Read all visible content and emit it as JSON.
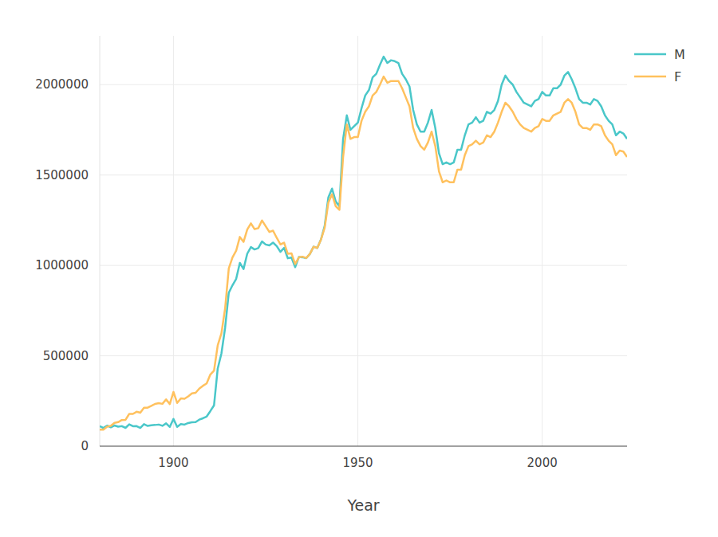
{
  "chart_data": {
    "type": "line",
    "x_label": "Year",
    "x": [
      1880,
      1881,
      1882,
      1883,
      1884,
      1885,
      1886,
      1887,
      1888,
      1889,
      1890,
      1891,
      1892,
      1893,
      1894,
      1895,
      1896,
      1897,
      1898,
      1899,
      1900,
      1901,
      1902,
      1903,
      1904,
      1905,
      1906,
      1907,
      1908,
      1909,
      1910,
      1911,
      1912,
      1913,
      1914,
      1915,
      1916,
      1917,
      1918,
      1919,
      1920,
      1921,
      1922,
      1923,
      1924,
      1925,
      1926,
      1927,
      1928,
      1929,
      1930,
      1931,
      1932,
      1933,
      1934,
      1935,
      1936,
      1937,
      1938,
      1939,
      1940,
      1941,
      1942,
      1943,
      1944,
      1945,
      1946,
      1947,
      1948,
      1949,
      1950,
      1951,
      1952,
      1953,
      1954,
      1955,
      1956,
      1957,
      1958,
      1959,
      1960,
      1961,
      1962,
      1963,
      1964,
      1965,
      1966,
      1967,
      1968,
      1969,
      1970,
      1971,
      1972,
      1973,
      1974,
      1975,
      1976,
      1977,
      1978,
      1979,
      1980,
      1981,
      1982,
      1983,
      1984,
      1985,
      1986,
      1987,
      1988,
      1989,
      1990,
      1991,
      1992,
      1993,
      1994,
      1995,
      1996,
      1997,
      1998,
      1999,
      2000,
      2001,
      2002,
      2003,
      2004,
      2005,
      2006,
      2007,
      2008,
      2009,
      2010,
      2011,
      2012,
      2013,
      2014,
      2015,
      2016,
      2017,
      2018,
      2019,
      2020,
      2021,
      2022,
      2023
    ],
    "series": [
      {
        "name": "M",
        "color": "#4ac7c9",
        "values": [
          110490,
          100738,
          113686,
          104625,
          114442,
          107799,
          110784,
          101412,
          120851,
          110580,
          111025,
          101193,
          122036,
          112317,
          115772,
          117396,
          119570,
          112758,
          126154,
          106471,
          150483,
          106469,
          122660,
          119233,
          128125,
          132319,
          133159,
          146838,
          154339,
          163983,
          194198,
          225964,
          429977,
          512482,
          654746,
          848647,
          890142,
          925512,
          1013720,
          980215,
          1064468,
          1101374,
          1088380,
          1096227,
          1132671,
          1115798,
          1110440,
          1126259,
          1107113,
          1075245,
          1097207,
          1039599,
          1043760,
          990679,
          1046340,
          1045143,
          1040106,
          1063999,
          1103838,
          1096376,
          1143408,
          1217991,
          1376815,
          1424786,
          1353811,
          1326849,
          1700000,
          1830000,
          1750000,
          1770000,
          1790000,
          1870000,
          1940000,
          1970000,
          2040000,
          2060000,
          2110000,
          2155000,
          2120000,
          2135000,
          2130000,
          2120000,
          2060000,
          2030000,
          1990000,
          1860000,
          1780000,
          1740000,
          1740000,
          1790000,
          1860000,
          1760000,
          1620000,
          1560000,
          1570000,
          1560000,
          1570000,
          1640000,
          1640000,
          1720000,
          1780000,
          1790000,
          1820000,
          1790000,
          1800000,
          1850000,
          1840000,
          1860000,
          1910000,
          2000000,
          2050000,
          2020000,
          2000000,
          1960000,
          1930000,
          1900000,
          1890000,
          1880000,
          1910000,
          1920000,
          1960000,
          1940000,
          1940000,
          1980000,
          1980000,
          2000000,
          2050000,
          2070000,
          2030000,
          1980000,
          1920000,
          1900000,
          1900000,
          1890000,
          1920000,
          1910000,
          1880000,
          1830000,
          1800000,
          1780000,
          1720000,
          1740000,
          1730000,
          1700000
        ]
      },
      {
        "name": "F",
        "color": "#ffc15e",
        "values": [
          90993,
          91953,
          107847,
          112319,
          129020,
          133055,
          144533,
          145981,
          178624,
          178366,
          190376,
          185481,
          212339,
          212905,
          222922,
          233629,
          237922,
          234199,
          258770,
          233023,
          299822,
          239350,
          264074,
          261972,
          275371,
          291643,
          295302,
          318566,
          334277,
          347191,
          396413,
          418180,
          557939,
          624317,
          761376,
          983824,
          1044249,
          1081194,
          1157585,
          1130149,
          1198214,
          1232845,
          1200796,
          1206239,
          1248821,
          1217217,
          1185078,
          1192207,
          1152836,
          1116284,
          1125521,
          1064233,
          1066930,
          1007523,
          1044249,
          1048395,
          1040892,
          1063786,
          1103293,
          1096429,
          1143216,
          1208315,
          1347640,
          1393508,
          1327624,
          1307406,
          1600000,
          1780000,
          1700000,
          1710000,
          1710000,
          1800000,
          1850000,
          1880000,
          1940000,
          1960000,
          2000000,
          2045000,
          2010000,
          2020000,
          2020000,
          2020000,
          1980000,
          1930000,
          1880000,
          1760000,
          1700000,
          1660000,
          1640000,
          1680000,
          1740000,
          1660000,
          1520000,
          1460000,
          1470000,
          1460000,
          1460000,
          1530000,
          1530000,
          1610000,
          1660000,
          1670000,
          1690000,
          1670000,
          1680000,
          1720000,
          1710000,
          1740000,
          1790000,
          1850000,
          1900000,
          1880000,
          1850000,
          1810000,
          1780000,
          1760000,
          1750000,
          1740000,
          1760000,
          1770000,
          1810000,
          1800000,
          1800000,
          1830000,
          1840000,
          1850000,
          1900000,
          1920000,
          1900000,
          1850000,
          1780000,
          1760000,
          1760000,
          1750000,
          1780000,
          1780000,
          1770000,
          1720000,
          1690000,
          1670000,
          1610000,
          1635000,
          1630000,
          1600000
        ]
      }
    ],
    "xlim": [
      1880,
      2023
    ],
    "ylim": [
      0,
      2270000
    ],
    "xticks": [
      1900,
      1950,
      2000
    ],
    "yticks": [
      0,
      500000,
      1000000,
      1500000,
      2000000
    ],
    "grid": true,
    "legend": "top-right"
  }
}
